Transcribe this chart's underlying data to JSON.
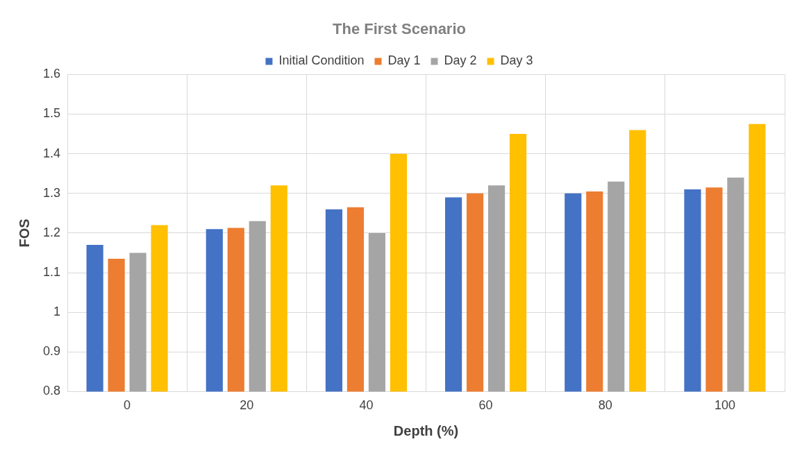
{
  "chart_data": {
    "type": "bar",
    "title": "The First Scenario",
    "xlabel": "Depth (%)",
    "ylabel": "FOS",
    "categories": [
      "0",
      "20",
      "40",
      "60",
      "80",
      "100"
    ],
    "series": [
      {
        "name": "Initial Condition",
        "color": "#4472c4",
        "values": [
          1.17,
          1.21,
          1.26,
          1.29,
          1.3,
          1.31
        ]
      },
      {
        "name": "Day 1",
        "color": "#ed7d31",
        "values": [
          1.135,
          1.213,
          1.265,
          1.3,
          1.305,
          1.315
        ]
      },
      {
        "name": "Day 2",
        "color": "#a5a5a5",
        "values": [
          1.15,
          1.23,
          1.2,
          1.32,
          1.33,
          1.34
        ]
      },
      {
        "name": "Day 3",
        "color": "#ffc000",
        "values": [
          1.22,
          1.32,
          1.4,
          1.45,
          1.46,
          1.475
        ]
      }
    ],
    "ylim": [
      0.8,
      1.6
    ],
    "yticks": [
      0.8,
      0.9,
      1,
      1.1,
      1.2,
      1.3,
      1.4,
      1.5,
      1.6
    ],
    "grid": true,
    "legend": "top"
  }
}
